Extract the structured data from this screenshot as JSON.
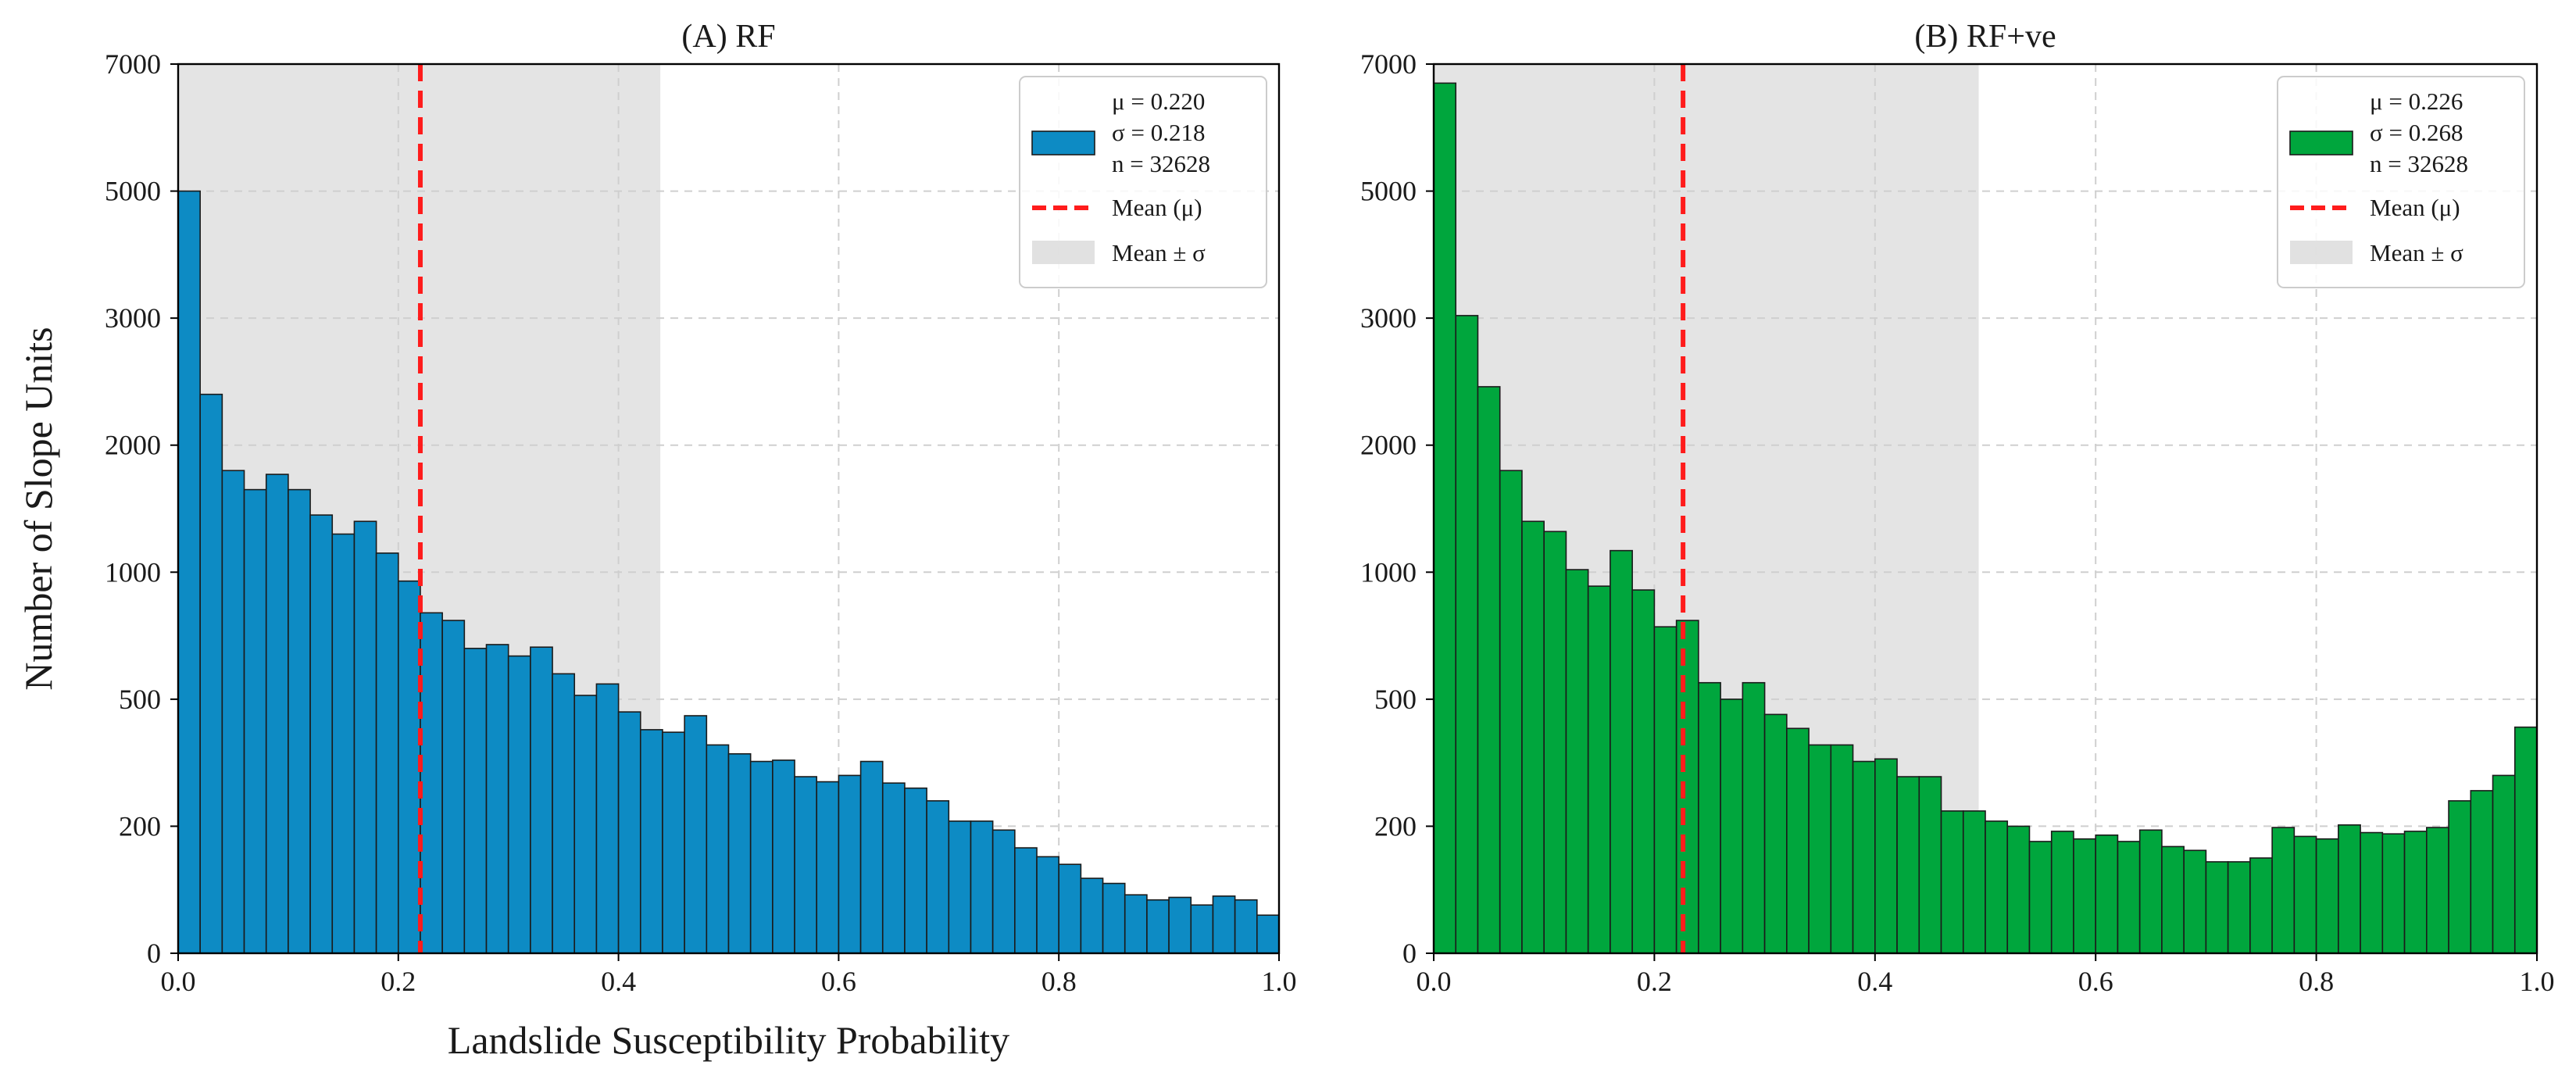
{
  "colors": {
    "rf_bar": "#0d8bc4",
    "rfve_bar": "#00a63d",
    "bar_edge": "#1b1b1b",
    "mean_line": "#ff1c1c",
    "sigma_band": "#d9d9d9",
    "grid": "#cfcfcf"
  },
  "chart_data": [
    {
      "type": "bar",
      "subtype": "histogram",
      "title": "(A) RF",
      "xlabel": "Landslide Susceptibility Probability",
      "ylabel": "Number of Slope Units",
      "xlim": [
        0.0,
        1.0
      ],
      "ylim": [
        0,
        7000
      ],
      "xticks": [
        0.0,
        0.2,
        0.4,
        0.6,
        0.8,
        1.0
      ],
      "xtick_labels": [
        "0.0",
        "0.2",
        "0.4",
        "0.6",
        "0.8",
        "1.0"
      ],
      "yticks": [
        0,
        200,
        500,
        1000,
        2000,
        3000,
        5000,
        7000
      ],
      "ytick_positions": [
        0,
        1000,
        2000,
        3000,
        4000,
        5000,
        6000,
        7000
      ],
      "ytick_labels": [
        "0",
        "200",
        "500",
        "1000",
        "2000",
        "3000",
        "5000",
        "7000"
      ],
      "grid": true,
      "bin_width": 0.02,
      "bin_edges_start": 0.0,
      "values": [
        6000,
        4400,
        3800,
        3650,
        3770,
        3650,
        3450,
        3300,
        3400,
        3150,
        2930,
        2680,
        2620,
        2400,
        2430,
        2340,
        2410,
        2200,
        2030,
        2120,
        1900,
        1760,
        1740,
        1870,
        1640,
        1570,
        1510,
        1520,
        1390,
        1350,
        1400,
        1510,
        1340,
        1300,
        1200,
        1040,
        1040,
        970,
        830,
        760,
        700,
        590,
        550,
        460,
        420,
        440,
        380,
        450,
        420,
        300
      ],
      "mean": 0.22,
      "sigma_band": [
        0.0,
        0.438
      ],
      "legend": {
        "position": "top-right",
        "series_label_lines": [
          "μ = 0.220",
          "σ = 0.218",
          "n = 32628"
        ],
        "mean_label": "Mean (μ)",
        "band_label": "Mean ± σ"
      }
    },
    {
      "type": "bar",
      "subtype": "histogram",
      "title": "(B) RF+ve",
      "xlabel": "",
      "ylabel": "",
      "xlim": [
        0.0,
        1.0
      ],
      "ylim": [
        0,
        7000
      ],
      "xticks": [
        0.0,
        0.2,
        0.4,
        0.6,
        0.8,
        1.0
      ],
      "xtick_labels": [
        "0.0",
        "0.2",
        "0.4",
        "0.6",
        "0.8",
        "1.0"
      ],
      "yticks": [
        0,
        200,
        500,
        1000,
        2000,
        3000,
        5000,
        7000
      ],
      "ytick_positions": [
        0,
        1000,
        2000,
        3000,
        4000,
        5000,
        6000,
        7000
      ],
      "ytick_labels": [
        "0",
        "200",
        "500",
        "1000",
        "2000",
        "3000",
        "5000",
        "7000"
      ],
      "grid": true,
      "bin_width": 0.02,
      "bin_edges_start": 0.0,
      "values": [
        6850,
        5020,
        4460,
        3800,
        3400,
        3320,
        3020,
        2890,
        3170,
        2860,
        2570,
        2620,
        2130,
        2000,
        2130,
        1880,
        1770,
        1640,
        1640,
        1510,
        1530,
        1390,
        1390,
        1120,
        1120,
        1040,
        1000,
        880,
        960,
        900,
        930,
        880,
        970,
        840,
        810,
        720,
        720,
        750,
        990,
        920,
        900,
        1010,
        950,
        940,
        960,
        990,
        1200,
        1280,
        1400,
        1780
      ],
      "mean": 0.226,
      "sigma_band": [
        0.0,
        0.494
      ],
      "legend": {
        "position": "top-right",
        "series_label_lines": [
          "μ = 0.226",
          "σ = 0.268",
          "n = 32628"
        ],
        "mean_label": "Mean (μ)",
        "band_label": "Mean ± σ"
      }
    }
  ]
}
